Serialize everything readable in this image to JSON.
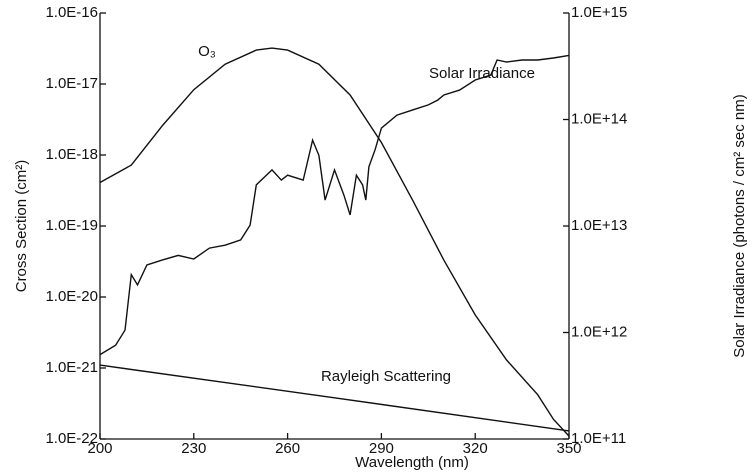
{
  "chart_data": {
    "type": "line",
    "x_label": "Wavelength (nm)",
    "y_label": "Cross Section (cm²)",
    "y2_label": "Solar Irradiance (photons / cm² sec nm)",
    "xlim": [
      200,
      350
    ],
    "xticks": [
      200,
      230,
      260,
      290,
      320,
      350
    ],
    "ylog": true,
    "ylim": [
      1e-22,
      1e-16
    ],
    "yticks": [
      {
        "value": 1e-22,
        "label": "1.0E-22"
      },
      {
        "value": 1e-21,
        "label": "1.0E-21"
      },
      {
        "value": 1e-20,
        "label": "1.0E-20"
      },
      {
        "value": 1e-19,
        "label": "1.0E-19"
      },
      {
        "value": 1e-18,
        "label": "1.0E-18"
      },
      {
        "value": 1e-17,
        "label": "1.0E-17"
      },
      {
        "value": 1e-16,
        "label": "1.0E-16"
      }
    ],
    "y2log": true,
    "y2lim": [
      100000000000.0,
      1000000000000000.0
    ],
    "y2ticks": [
      {
        "value": 100000000000.0,
        "label": "1.0E+11"
      },
      {
        "value": 1000000000000.0,
        "label": "1.0E+12"
      },
      {
        "value": 10000000000000.0,
        "label": "1.0E+13"
      },
      {
        "value": 100000000000000.0,
        "label": "1.0E+14"
      },
      {
        "value": 1000000000000000.0,
        "label": "1.0E+15"
      }
    ],
    "series": [
      {
        "name": "O₃",
        "color": "#111111",
        "x": [
          200,
          210,
          220,
          230,
          240,
          250,
          255,
          260,
          270,
          280,
          290,
          300,
          310,
          320,
          330,
          340,
          345,
          350
        ],
        "values": [
          4.1e-19,
          7.2e-19,
          2.6e-18,
          8.3e-18,
          1.9e-17,
          3e-17,
          3.2e-17,
          3e-17,
          1.9e-17,
          7e-18,
          1.5e-18,
          2.3e-19,
          3.3e-20,
          5.6e-21,
          1.3e-21,
          4.2e-22,
          1.9e-22,
          1.1e-22
        ]
      },
      {
        "name": "Solar Irradiance",
        "color": "#111111",
        "axis": "y2",
        "x": [
          200,
          205,
          208,
          210,
          212,
          215,
          220,
          225,
          230,
          235,
          240,
          245,
          248,
          250,
          255,
          258,
          260,
          265,
          268,
          270,
          272,
          275,
          278,
          280,
          282,
          284,
          285,
          286,
          288,
          290,
          295,
          300,
          305,
          308,
          310,
          315,
          320,
          325,
          327,
          330,
          335,
          340,
          345,
          350
        ],
        "values": [
          620000000000.0,
          760000000000.0,
          1050000000000.0,
          3500000000000.0,
          2800000000000.0,
          4300000000000.0,
          4800000000000.0,
          5300000000000.0,
          4900000000000.0,
          6200000000000.0,
          6600000000000.0,
          7400000000000.0,
          10200000000000.0,
          24300000000000.0,
          33600000000000.0,
          27000000000000.0,
          30000000000000.0,
          27000000000000.0,
          64000000000000.0,
          46000000000000.0,
          17500000000000.0,
          33600000000000.0,
          19500000000000.0,
          12700000000000.0,
          30000000000000.0,
          24300000000000.0,
          17500000000000.0,
          36000000000000.0,
          52000000000000.0,
          83000000000000.0,
          110000000000000.0,
          123000000000000.0,
          137000000000000.0,
          152000000000000.0,
          170000000000000.0,
          189000000000000.0,
          235000000000000.0,
          262000000000000.0,
          362000000000000.0,
          347000000000000.0,
          362000000000000.0,
          362000000000000.0,
          378000000000000.0,
          400000000000000.0
        ]
      },
      {
        "name": "Rayleigh Scattering",
        "color": "#111111",
        "x": [
          200,
          275,
          350
        ],
        "values": [
          1.1e-21,
          3.8e-22,
          1.3e-22
        ]
      }
    ]
  }
}
